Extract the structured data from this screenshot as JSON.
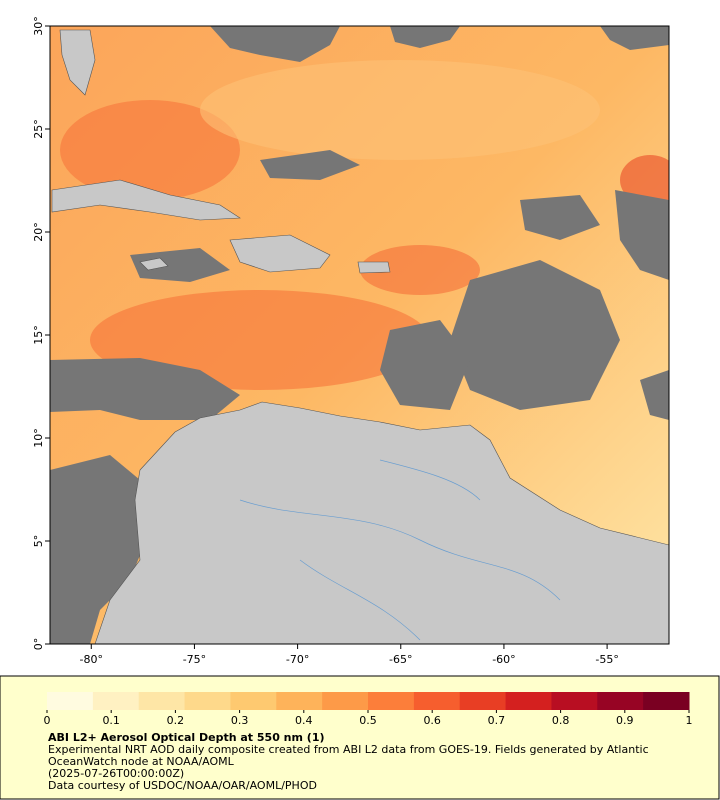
{
  "chart_data": {
    "type": "map",
    "title": "ABI L2+ Aerosol Optical Depth at 550 nm (1)",
    "description": "Experimental NRT AOD daily composite created from ABI L2 data from GOES-19. Fields generated by Atlantic OceanWatch node at NOAA/AOML",
    "date": "(2025-07-26T00:00:00Z)",
    "credit": "Data courtesy of USDOC/NOAA/OAR/AOML/PHOD",
    "xlim": [
      -82,
      -52
    ],
    "ylim": [
      0,
      30
    ],
    "xticks": [
      {
        "value": -80,
        "label": "-80°"
      },
      {
        "value": -75,
        "label": "-75°"
      },
      {
        "value": -70,
        "label": "-70°"
      },
      {
        "value": -65,
        "label": "-65°"
      },
      {
        "value": -60,
        "label": "-60°"
      },
      {
        "value": -55,
        "label": "-55°"
      }
    ],
    "yticks": [
      {
        "value": 0,
        "label": "0°"
      },
      {
        "value": 5,
        "label": "5°"
      },
      {
        "value": 10,
        "label": "10°"
      },
      {
        "value": 15,
        "label": "15°"
      },
      {
        "value": 20,
        "label": "20°"
      },
      {
        "value": 25,
        "label": "25°"
      },
      {
        "value": 30,
        "label": "30°"
      }
    ],
    "colorbar": {
      "lim": [
        0,
        1
      ],
      "ticks": [
        0,
        0.1,
        0.2,
        0.3,
        0.4,
        0.5,
        0.6,
        0.7,
        0.8,
        0.9,
        1
      ],
      "colors": [
        "#fffbe0",
        "#fff1c2",
        "#fee6a6",
        "#fed98b",
        "#fec970",
        "#feb35a",
        "#fd9a48",
        "#fc7e3a",
        "#f65e2e",
        "#e83e24",
        "#d4201f",
        "#b80e22",
        "#970424",
        "#7a0022"
      ]
    }
  }
}
